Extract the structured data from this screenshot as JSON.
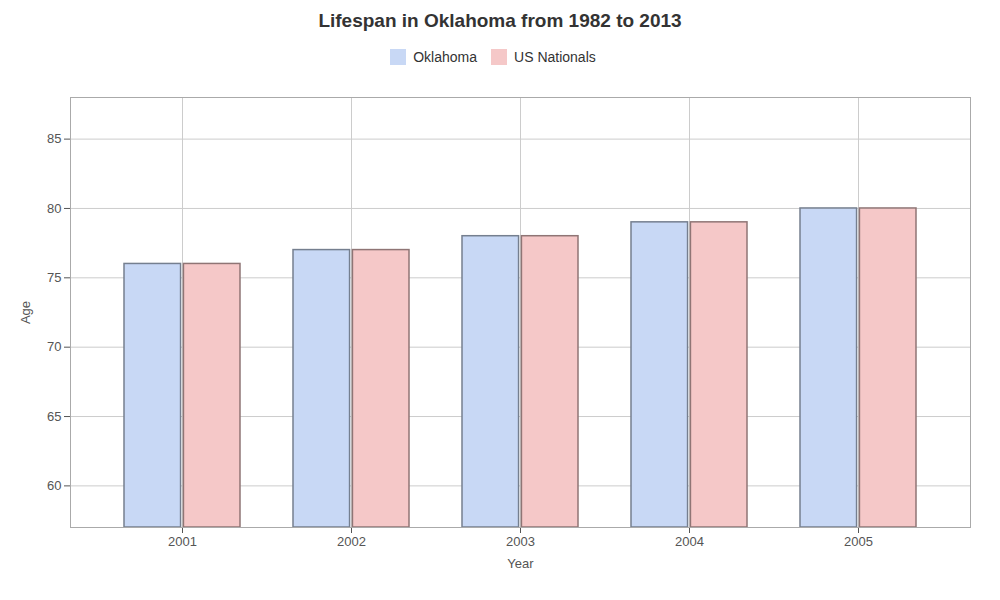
{
  "chart_data": {
    "type": "bar",
    "title": "Lifespan in Oklahoma from 1982 to 2013",
    "xlabel": "Year",
    "ylabel": "Age",
    "categories": [
      "2001",
      "2002",
      "2003",
      "2004",
      "2005"
    ],
    "series": [
      {
        "name": "Oklahoma",
        "color": "#c8d8f5",
        "values": [
          76,
          77,
          78,
          79,
          80
        ]
      },
      {
        "name": "US Nationals",
        "color": "#f5c8c8",
        "values": [
          76,
          77,
          78,
          79,
          80
        ]
      }
    ],
    "ylim": [
      57,
      88
    ],
    "yticks": [
      60,
      65,
      70,
      75,
      80,
      85
    ],
    "grid": true,
    "legend": "top"
  }
}
